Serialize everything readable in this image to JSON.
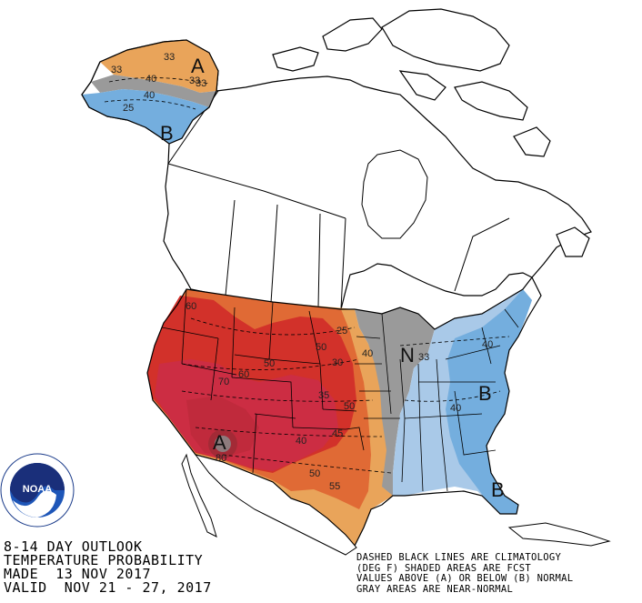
{
  "title": {
    "line1": "8-14 DAY OUTLOOK",
    "line2": "TEMPERATURE PROBABILITY",
    "made_label": "MADE",
    "made_date": "13 NOV 2017",
    "valid_label": "VALID",
    "valid_dates": "NOV 21 - 27, 2017"
  },
  "legend": {
    "line1": "DASHED BLACK LINES ARE CLIMATOLOGY",
    "line2": "(DEG F) SHADED AREAS ARE FCST",
    "line3": "VALUES ABOVE (A) OR BELOW (B) NORMAL",
    "line4": "GRAY AREAS ARE NEAR-NORMAL"
  },
  "logo": {
    "text": "NOAA",
    "ring_text": "NATIONAL OCEANIC AND ATMOSPHERIC ADMINISTRATION · U.S. DEPARTMENT OF COMMERCE ·"
  },
  "colors": {
    "above_33": "#e9a45a",
    "above_40": "#e06a35",
    "above_50": "#d2312a",
    "above_60": "#cc2d43",
    "above_70": "#c02a3c",
    "below_33": "#a9c9e8",
    "below_40": "#74aede",
    "near_normal": "#9a9a9a",
    "land": "#ffffff",
    "border": "#000000"
  },
  "region_labels": [
    {
      "name": "alaska-above-A",
      "text": "A"
    },
    {
      "name": "alaska-below-B",
      "text": "B"
    },
    {
      "name": "west-above-A",
      "text": "A"
    },
    {
      "name": "east-below-B",
      "text": "B"
    },
    {
      "name": "florida-below-B",
      "text": "B"
    },
    {
      "name": "great-lakes-normal-N",
      "text": "N"
    }
  ],
  "contour_labels": [
    "33",
    "33",
    "33",
    "33",
    "40",
    "40",
    "40",
    "40",
    "40",
    "60",
    "60",
    "50",
    "50",
    "50",
    "50",
    "70",
    "80",
    "35",
    "30",
    "25",
    "25",
    "55",
    "45",
    "33",
    "40"
  ]
}
